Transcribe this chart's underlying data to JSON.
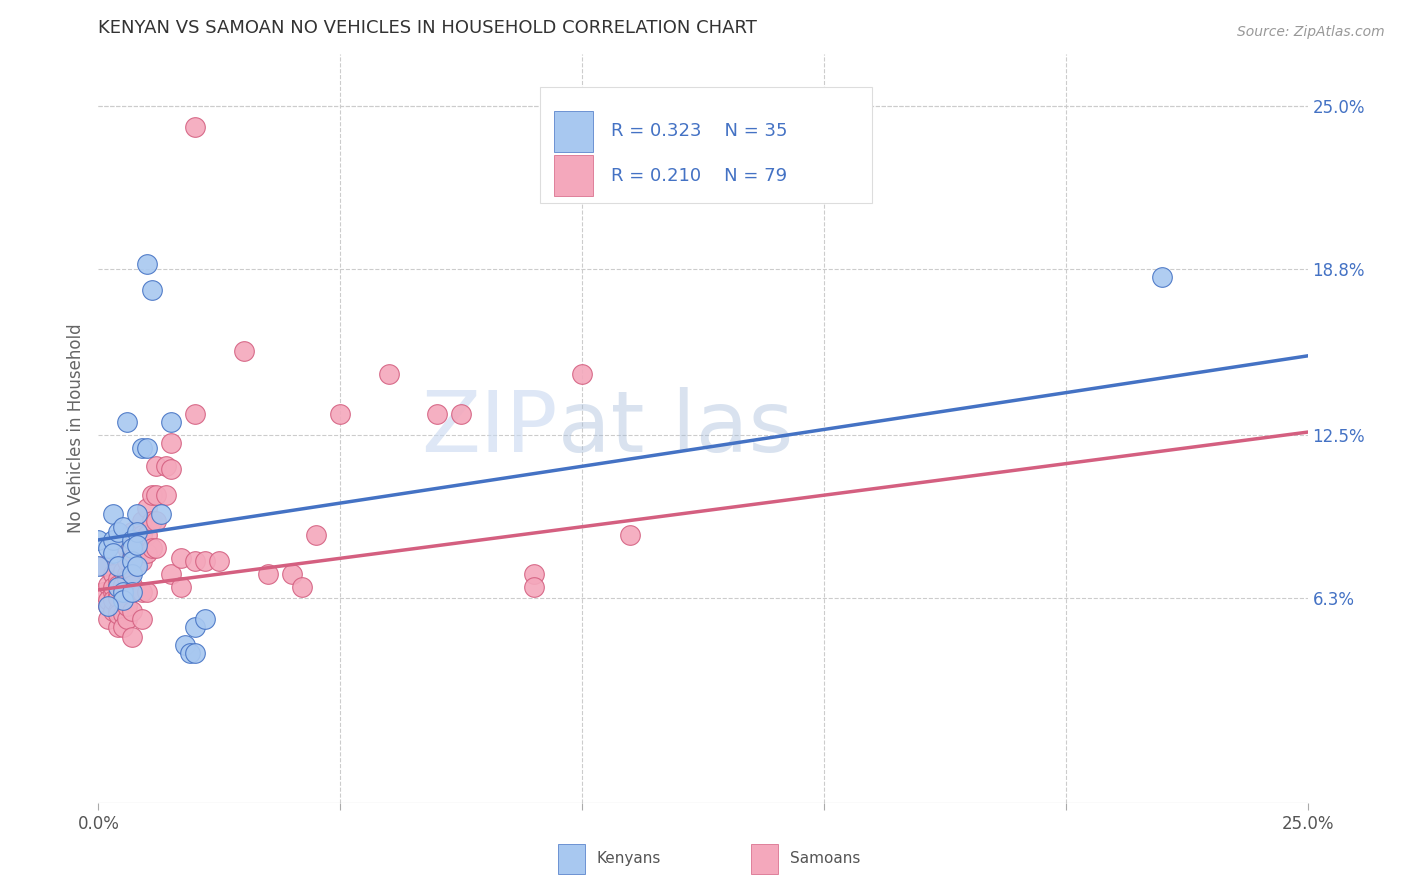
{
  "title": "KENYAN VS SAMOAN NO VEHICLES IN HOUSEHOLD CORRELATION CHART",
  "source": "Source: ZipAtlas.com",
  "ylabel": "No Vehicles in Household",
  "xlim": [
    0.0,
    0.25
  ],
  "ylim": [
    -0.015,
    0.27
  ],
  "ytick_labels_right": [
    "6.3%",
    "12.5%",
    "18.8%",
    "25.0%"
  ],
  "ytick_positions_right": [
    0.063,
    0.125,
    0.188,
    0.25
  ],
  "kenyan_R": "0.323",
  "kenyan_N": "35",
  "samoan_R": "0.210",
  "samoan_N": "79",
  "kenyan_color": "#a8c8f0",
  "samoan_color": "#f4a8bc",
  "kenyan_line_color": "#4472c4",
  "samoan_line_color": "#d45f80",
  "legend_text_color": "#4472c4",
  "watermark_color": "#c8d8f0",
  "background_color": "#ffffff",
  "grid_color": "#cccccc",
  "kenyan_scatter": [
    [
      0.0,
      0.085
    ],
    [
      0.0,
      0.075
    ],
    [
      0.002,
      0.082
    ],
    [
      0.003,
      0.095
    ],
    [
      0.003,
      0.085
    ],
    [
      0.003,
      0.08
    ],
    [
      0.004,
      0.088
    ],
    [
      0.004,
      0.075
    ],
    [
      0.004,
      0.067
    ],
    [
      0.005,
      0.09
    ],
    [
      0.005,
      0.065
    ],
    [
      0.005,
      0.062
    ],
    [
      0.006,
      0.13
    ],
    [
      0.007,
      0.085
    ],
    [
      0.007,
      0.082
    ],
    [
      0.007,
      0.077
    ],
    [
      0.007,
      0.072
    ],
    [
      0.007,
      0.065
    ],
    [
      0.008,
      0.095
    ],
    [
      0.008,
      0.088
    ],
    [
      0.008,
      0.083
    ],
    [
      0.008,
      0.075
    ],
    [
      0.009,
      0.12
    ],
    [
      0.01,
      0.12
    ],
    [
      0.01,
      0.19
    ],
    [
      0.011,
      0.18
    ],
    [
      0.013,
      0.095
    ],
    [
      0.015,
      0.13
    ],
    [
      0.018,
      0.045
    ],
    [
      0.019,
      0.042
    ],
    [
      0.02,
      0.052
    ],
    [
      0.02,
      0.042
    ],
    [
      0.022,
      0.055
    ],
    [
      0.22,
      0.185
    ],
    [
      0.002,
      0.06
    ]
  ],
  "samoan_scatter": [
    [
      0.001,
      0.075
    ],
    [
      0.001,
      0.065
    ],
    [
      0.002,
      0.06
    ],
    [
      0.002,
      0.068
    ],
    [
      0.002,
      0.062
    ],
    [
      0.002,
      0.055
    ],
    [
      0.003,
      0.065
    ],
    [
      0.003,
      0.058
    ],
    [
      0.003,
      0.072
    ],
    [
      0.003,
      0.067
    ],
    [
      0.003,
      0.062
    ],
    [
      0.004,
      0.07
    ],
    [
      0.004,
      0.064
    ],
    [
      0.004,
      0.058
    ],
    [
      0.004,
      0.052
    ],
    [
      0.004,
      0.068
    ],
    [
      0.004,
      0.063
    ],
    [
      0.004,
      0.057
    ],
    [
      0.005,
      0.073
    ],
    [
      0.005,
      0.068
    ],
    [
      0.005,
      0.062
    ],
    [
      0.005,
      0.057
    ],
    [
      0.005,
      0.052
    ],
    [
      0.006,
      0.077
    ],
    [
      0.006,
      0.072
    ],
    [
      0.006,
      0.065
    ],
    [
      0.006,
      0.055
    ],
    [
      0.006,
      0.082
    ],
    [
      0.006,
      0.077
    ],
    [
      0.006,
      0.07
    ],
    [
      0.006,
      0.065
    ],
    [
      0.006,
      0.06
    ],
    [
      0.007,
      0.088
    ],
    [
      0.007,
      0.078
    ],
    [
      0.007,
      0.073
    ],
    [
      0.007,
      0.068
    ],
    [
      0.007,
      0.058
    ],
    [
      0.007,
      0.048
    ],
    [
      0.009,
      0.092
    ],
    [
      0.009,
      0.087
    ],
    [
      0.009,
      0.077
    ],
    [
      0.009,
      0.065
    ],
    [
      0.009,
      0.055
    ],
    [
      0.01,
      0.097
    ],
    [
      0.01,
      0.087
    ],
    [
      0.01,
      0.08
    ],
    [
      0.01,
      0.065
    ],
    [
      0.011,
      0.102
    ],
    [
      0.011,
      0.092
    ],
    [
      0.011,
      0.082
    ],
    [
      0.012,
      0.113
    ],
    [
      0.012,
      0.102
    ],
    [
      0.012,
      0.092
    ],
    [
      0.012,
      0.082
    ],
    [
      0.014,
      0.113
    ],
    [
      0.014,
      0.102
    ],
    [
      0.015,
      0.122
    ],
    [
      0.015,
      0.112
    ],
    [
      0.015,
      0.072
    ],
    [
      0.017,
      0.078
    ],
    [
      0.017,
      0.067
    ],
    [
      0.02,
      0.133
    ],
    [
      0.02,
      0.077
    ],
    [
      0.022,
      0.077
    ],
    [
      0.025,
      0.077
    ],
    [
      0.03,
      0.157
    ],
    [
      0.035,
      0.072
    ],
    [
      0.04,
      0.072
    ],
    [
      0.042,
      0.067
    ],
    [
      0.045,
      0.087
    ],
    [
      0.05,
      0.133
    ],
    [
      0.06,
      0.148
    ],
    [
      0.07,
      0.133
    ],
    [
      0.075,
      0.133
    ],
    [
      0.09,
      0.072
    ],
    [
      0.09,
      0.067
    ],
    [
      0.1,
      0.148
    ],
    [
      0.11,
      0.087
    ],
    [
      0.02,
      0.242
    ]
  ],
  "kenyan_line": {
    "x0": 0.0,
    "y0": 0.085,
    "x1": 0.25,
    "y1": 0.155
  },
  "samoan_line": {
    "x0": 0.0,
    "y0": 0.066,
    "x1": 0.25,
    "y1": 0.126
  }
}
